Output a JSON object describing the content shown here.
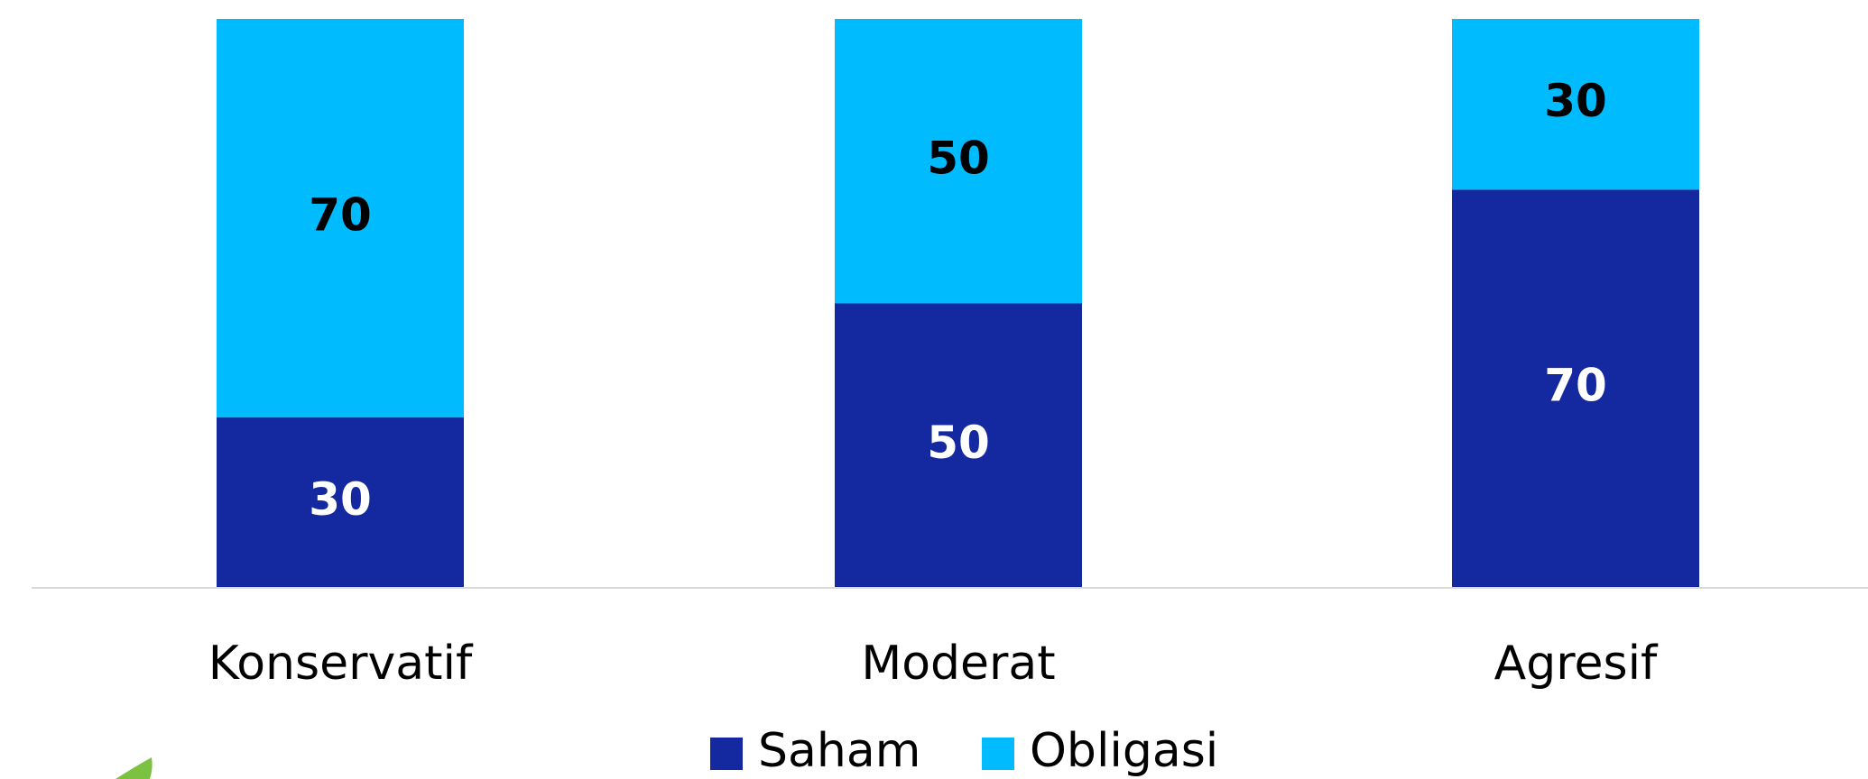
{
  "chart_data": {
    "type": "stacked_bar",
    "categories": [
      "Konservatif",
      "Moderat",
      "Agresif"
    ],
    "series": [
      {
        "name": "Saham",
        "color": "#14289f",
        "label_color": "#ffffff",
        "values": [
          30,
          50,
          70
        ]
      },
      {
        "name": "Obligasi",
        "color": "#00bcff",
        "label_color": "#000000",
        "values": [
          70,
          50,
          30
        ]
      }
    ],
    "ylim": [
      0,
      100
    ]
  }
}
